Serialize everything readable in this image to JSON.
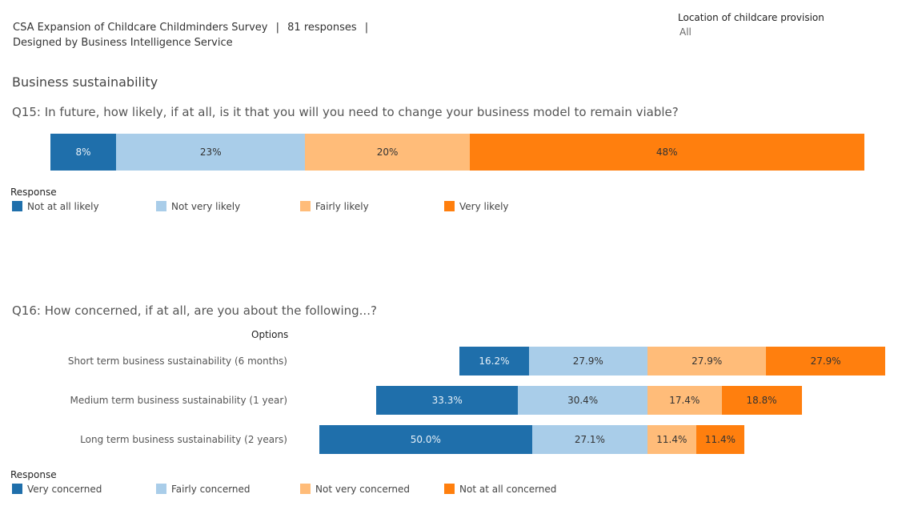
{
  "header": {
    "survey_title": "CSA Expansion of Childcare Childminders Survey",
    "separator": "|",
    "responses": "81 responses",
    "designed_by": "Designed by Business Intelligence Service"
  },
  "filter": {
    "label": "Location of childcare provision",
    "value": "All"
  },
  "section_title": "Business sustainability",
  "chart_data": [
    {
      "type": "bar",
      "orientation": "horizontal-stacked",
      "title": "Q15: In future, how likely, if at all, is it that you will you need to change your business model to remain viable?",
      "legend_title": "Response",
      "legend_position": "bottom-left",
      "series": [
        {
          "name": "Not at all likely",
          "color": "#1f6fab",
          "value": 8,
          "label": "8%"
        },
        {
          "name": "Not very likely",
          "color": "#a9cde9",
          "value": 23,
          "label": "23%"
        },
        {
          "name": "Fairly likely",
          "color": "#ffbc79",
          "value": 20,
          "label": "20%"
        },
        {
          "name": "Very likely",
          "color": "#ff7f0e",
          "value": 48,
          "label": "48%"
        }
      ]
    },
    {
      "type": "bar",
      "orientation": "horizontal-diverging",
      "title": "Q16: How concerned, if at all, are you about the following...?",
      "row_header": "Options",
      "legend_title": "Response",
      "legend_position": "bottom-left",
      "categories": [
        "Short term business sustainability (6 months)",
        "Medium term business sustainability (1 year)",
        "Long term business sustainability (2 years)"
      ],
      "series": [
        {
          "name": "Very concerned",
          "color": "#1f6fab",
          "values": [
            16.2,
            33.3,
            50.0
          ],
          "labels": [
            "16.2%",
            "33.3%",
            "50.0%"
          ]
        },
        {
          "name": "Fairly concerned",
          "color": "#a9cde9",
          "values": [
            27.9,
            30.4,
            27.1
          ],
          "labels": [
            "27.9%",
            "30.4%",
            "27.1%"
          ]
        },
        {
          "name": "Not very concerned",
          "color": "#ffbc79",
          "values": [
            27.9,
            17.4,
            11.4
          ],
          "labels": [
            "27.9%",
            "17.4%",
            "11.4%"
          ]
        },
        {
          "name": "Not at all concerned",
          "color": "#ff7f0e",
          "values": [
            27.9,
            18.8,
            11.4
          ],
          "labels": [
            "27.9%",
            "18.8%",
            "11.4%"
          ]
        }
      ]
    }
  ]
}
